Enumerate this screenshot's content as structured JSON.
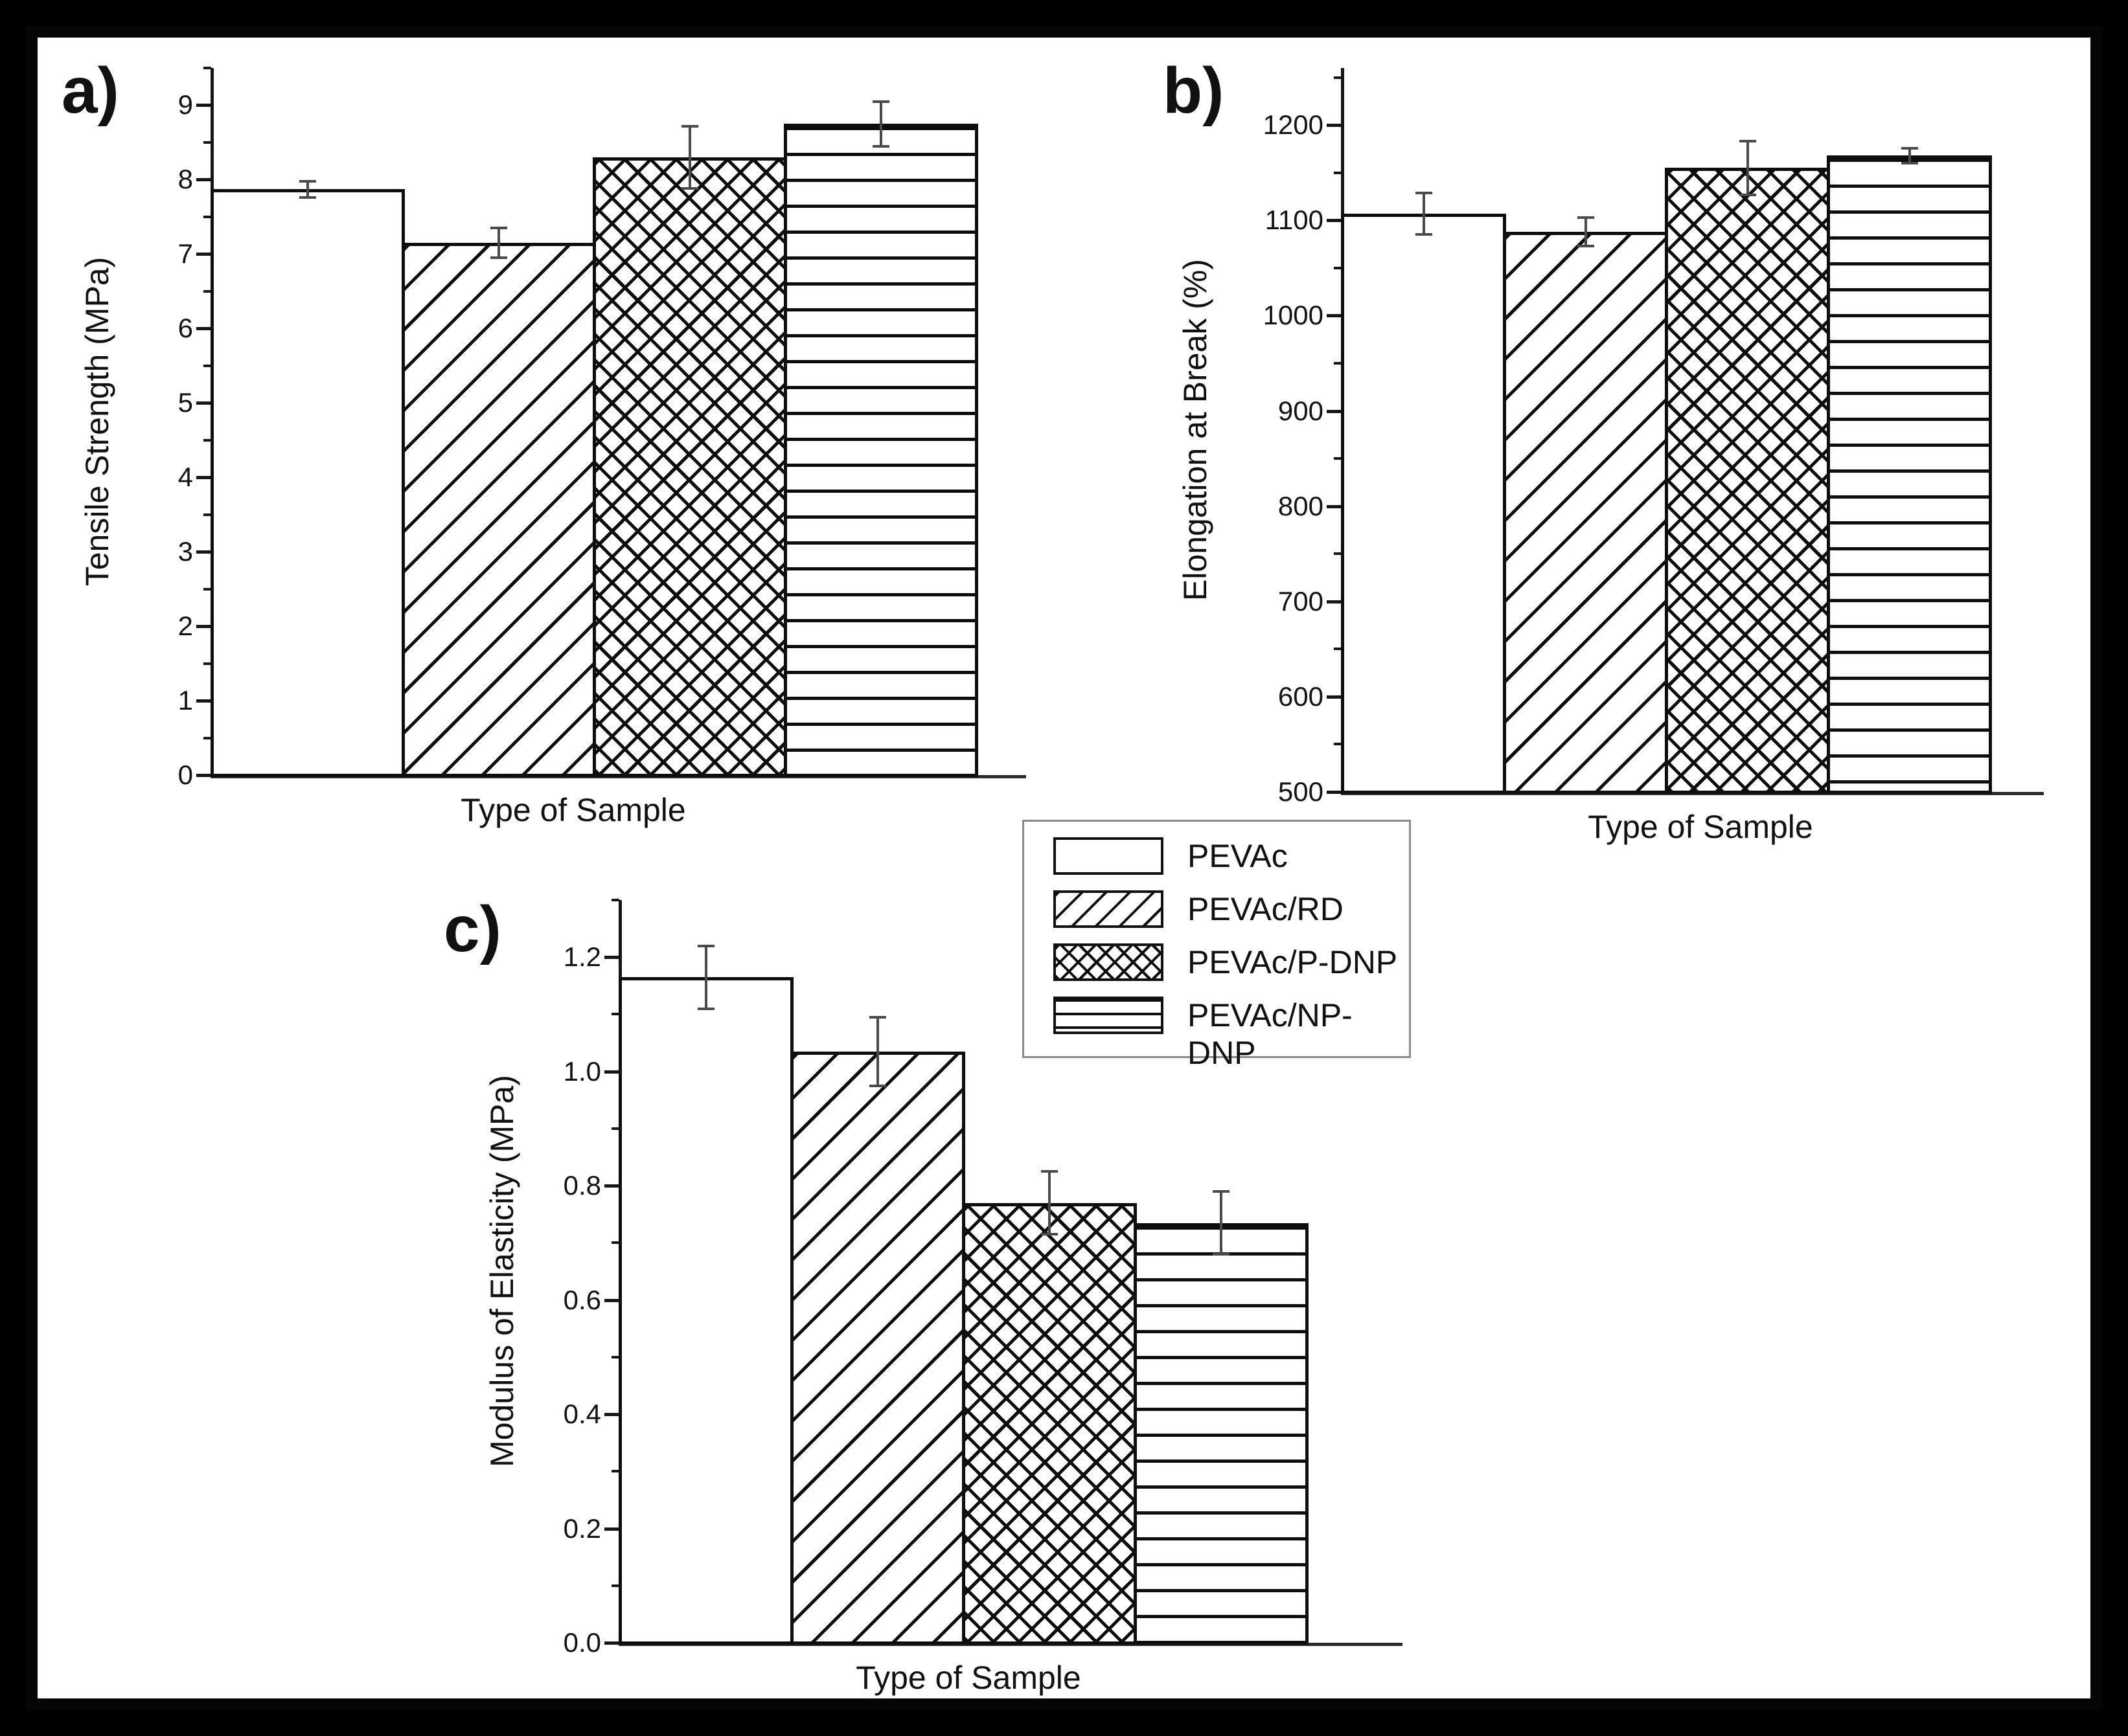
{
  "figure": {
    "description": "Three-panel bar figure of mechanical properties for PEVAc sample types",
    "background_color": "#000000",
    "page_color": "#ffffff",
    "frame_border_color": "#050505",
    "ink_color": "#0e0e0e",
    "error_bar_color": "#4a4a4a",
    "legend_border_color": "#8a8a8a"
  },
  "legend": {
    "items": [
      {
        "label": "PEVAc",
        "pattern": "plain"
      },
      {
        "label": "PEVAc/RD",
        "pattern": "diag"
      },
      {
        "label": "PEVAc/P-DNP",
        "pattern": "cross"
      },
      {
        "label": "PEVAc/NP-DNP",
        "pattern": "hlines"
      }
    ]
  },
  "chart_data": [
    {
      "id": "a",
      "type": "bar",
      "panel_label": "a)",
      "xlabel": "Type of Sample",
      "ylabel": "Tensile Strength (MPa)",
      "categories": [
        "PEVAc",
        "PEVAc/RD",
        "PEVAc/P-DNP",
        "PEVAc/NP-DNP"
      ],
      "patterns": [
        "plain",
        "diag",
        "cross",
        "hlines"
      ],
      "values": [
        7.87,
        7.15,
        8.3,
        8.75
      ],
      "errors": [
        0.11,
        0.2,
        0.42,
        0.3
      ],
      "y_axis": {
        "min": 0,
        "max": 9.5,
        "major_step": 1,
        "minor_step": 0.5,
        "decimals": 0,
        "tick_labels": [
          "0",
          "1",
          "2",
          "3",
          "4",
          "5",
          "6",
          "7",
          "8",
          "9"
        ]
      },
      "grid": false
    },
    {
      "id": "b",
      "type": "bar",
      "panel_label": "b)",
      "xlabel": "Type of Sample",
      "ylabel": "Elongation at Break (%)",
      "categories": [
        "PEVAc",
        "PEVAc/RD",
        "PEVAc/P-DNP",
        "PEVAc/NP-DNP"
      ],
      "patterns": [
        "plain",
        "diag",
        "cross",
        "hlines"
      ],
      "values": [
        1107,
        1088,
        1155,
        1168
      ],
      "errors": [
        22,
        15,
        28,
        8
      ],
      "y_axis": {
        "min": 500,
        "max": 1260,
        "major_step": 100,
        "minor_step": 50,
        "decimals": 0,
        "tick_labels": [
          "500",
          "600",
          "700",
          "800",
          "900",
          "1000",
          "1100",
          "1200"
        ]
      },
      "grid": false
    },
    {
      "id": "c",
      "type": "bar",
      "panel_label": "c)",
      "xlabel": "Type of Sample",
      "ylabel": "Modulus of Elasticity (MPa)",
      "categories": [
        "PEVAc",
        "PEVAc/RD",
        "PEVAc/P-DNP",
        "PEVAc/NP-DNP"
      ],
      "patterns": [
        "plain",
        "diag",
        "cross",
        "hlines"
      ],
      "values": [
        1.165,
        1.035,
        0.77,
        0.735
      ],
      "errors": [
        0.055,
        0.06,
        0.055,
        0.055
      ],
      "y_axis": {
        "min": 0,
        "max": 1.3,
        "major_step": 0.2,
        "minor_step": 0.1,
        "decimals": 1,
        "tick_labels": [
          "0.0",
          "0.2",
          "0.4",
          "0.6",
          "0.8",
          "1.0",
          "1.2"
        ]
      },
      "grid": false
    }
  ]
}
